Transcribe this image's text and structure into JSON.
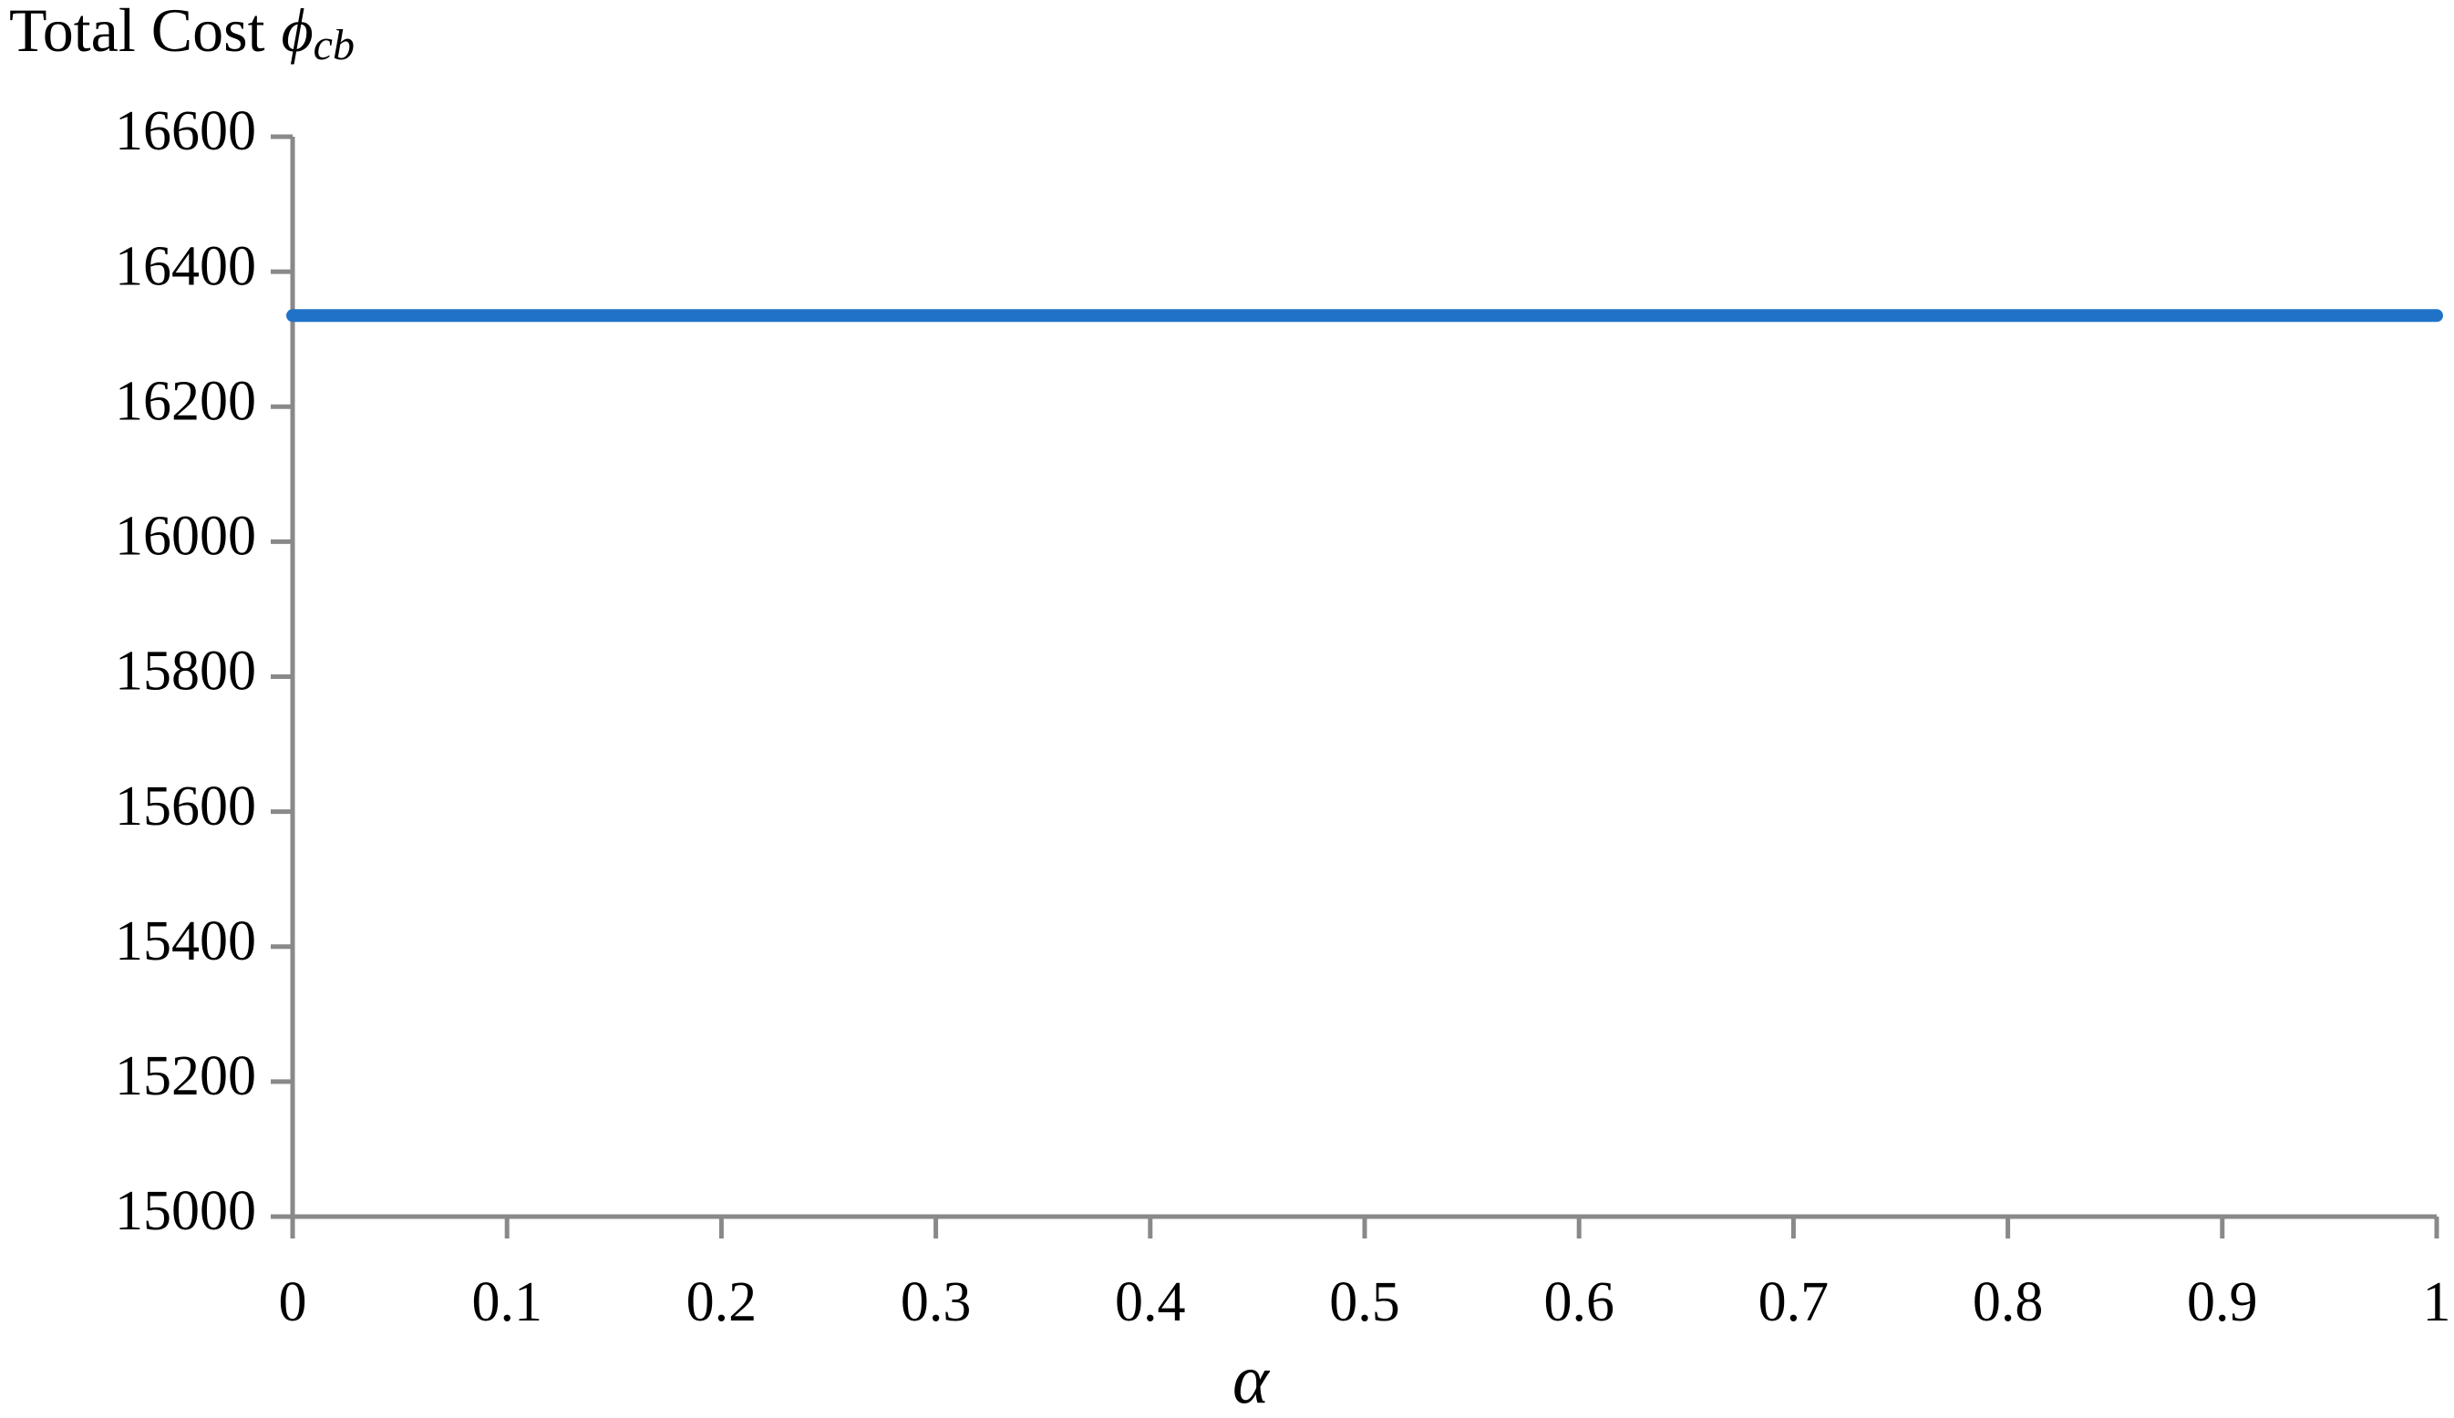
{
  "chart_data": {
    "type": "line",
    "y_label": "Total Cost",
    "y_label_symbol": "ϕ",
    "y_label_subscript": "cb",
    "x_label": "α",
    "x": [
      0,
      0.1,
      0.2,
      0.3,
      0.4,
      0.5,
      0.6,
      0.7,
      0.8,
      0.9,
      1
    ],
    "series": [
      {
        "color": "#1f72c8",
        "values": [
          16335,
          16335,
          16335,
          16335,
          16335,
          16335,
          16335,
          16335,
          16335,
          16335,
          16335
        ]
      }
    ],
    "xlim": [
      0,
      1
    ],
    "xticks": [
      0,
      0.1,
      0.2,
      0.3,
      0.4,
      0.5,
      0.6,
      0.7,
      0.8,
      0.9,
      1
    ],
    "ylim": [
      15000,
      16600
    ],
    "yticks": [
      15000,
      15200,
      15400,
      15600,
      15800,
      16000,
      16200,
      16400,
      16600
    ],
    "grid": false
  }
}
